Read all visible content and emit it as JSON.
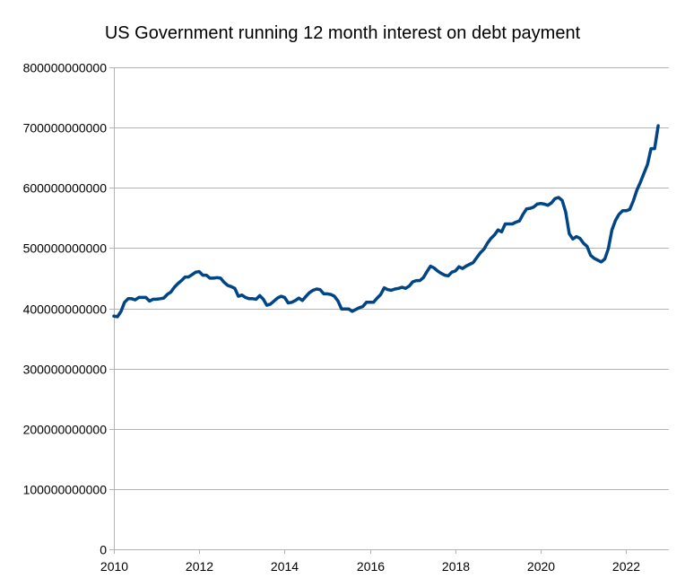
{
  "chart_data": {
    "type": "line",
    "title": "US Government running 12 month interest on debt payment",
    "xlabel": "",
    "ylabel": "",
    "xlim": [
      2010,
      2023.0
    ],
    "ylim": [
      0,
      800000000000
    ],
    "grid": true,
    "legend": "none",
    "x_ticks": [
      2010,
      2012,
      2014,
      2016,
      2018,
      2020,
      2022
    ],
    "x_tick_labels": [
      "2010",
      "2012",
      "2014",
      "2016",
      "2018",
      "2020",
      "2022"
    ],
    "y_ticks": [
      0,
      100000000000,
      200000000000,
      300000000000,
      400000000000,
      500000000000,
      600000000000,
      700000000000,
      800000000000
    ],
    "y_tick_labels": [
      "0",
      "100000000000",
      "200000000000",
      "300000000000",
      "400000000000",
      "500000000000",
      "600000000000",
      "700000000000",
      "800000000000"
    ],
    "series": [
      {
        "name": "Interest on debt (12-month running)",
        "color": "#004586",
        "x": [
          2010.0,
          2010.083,
          2010.167,
          2010.25,
          2010.333,
          2010.417,
          2010.5,
          2010.583,
          2010.667,
          2010.75,
          2010.833,
          2010.917,
          2011.0,
          2011.083,
          2011.167,
          2011.25,
          2011.333,
          2011.417,
          2011.5,
          2011.583,
          2011.667,
          2011.75,
          2011.833,
          2011.917,
          2012.0,
          2012.083,
          2012.167,
          2012.25,
          2012.333,
          2012.417,
          2012.5,
          2012.583,
          2012.667,
          2012.75,
          2012.833,
          2012.917,
          2013.0,
          2013.083,
          2013.167,
          2013.25,
          2013.333,
          2013.417,
          2013.5,
          2013.583,
          2013.667,
          2013.75,
          2013.833,
          2013.917,
          2014.0,
          2014.083,
          2014.167,
          2014.25,
          2014.333,
          2014.417,
          2014.5,
          2014.583,
          2014.667,
          2014.75,
          2014.833,
          2014.917,
          2015.0,
          2015.083,
          2015.167,
          2015.25,
          2015.333,
          2015.417,
          2015.5,
          2015.583,
          2015.667,
          2015.75,
          2015.833,
          2015.917,
          2016.0,
          2016.083,
          2016.167,
          2016.25,
          2016.333,
          2016.417,
          2016.5,
          2016.583,
          2016.667,
          2016.75,
          2016.833,
          2016.917,
          2017.0,
          2017.083,
          2017.167,
          2017.25,
          2017.333,
          2017.417,
          2017.5,
          2017.583,
          2017.667,
          2017.75,
          2017.833,
          2017.917,
          2018.0,
          2018.083,
          2018.167,
          2018.25,
          2018.333,
          2018.417,
          2018.5,
          2018.583,
          2018.667,
          2018.75,
          2018.833,
          2018.917,
          2019.0,
          2019.083,
          2019.167,
          2019.25,
          2019.333,
          2019.417,
          2019.5,
          2019.583,
          2019.667,
          2019.75,
          2019.833,
          2019.917,
          2020.0,
          2020.083,
          2020.167,
          2020.25,
          2020.333,
          2020.417,
          2020.5,
          2020.583,
          2020.667,
          2020.75,
          2020.833,
          2020.917,
          2021.0,
          2021.083,
          2021.167,
          2021.25,
          2021.333,
          2021.417,
          2021.5,
          2021.583,
          2021.667,
          2021.75,
          2021.833,
          2021.917,
          2022.0,
          2022.083,
          2022.167,
          2022.25,
          2022.333,
          2022.417,
          2022.5,
          2022.583,
          2022.667,
          2022.75
        ],
        "values": [
          387000000000,
          386000000000,
          395000000000,
          410000000000,
          416000000000,
          416000000000,
          414000000000,
          418000000000,
          418000000000,
          418000000000,
          412000000000,
          415000000000,
          415000000000,
          416000000000,
          417000000000,
          423000000000,
          427000000000,
          435000000000,
          441000000000,
          446000000000,
          452000000000,
          452000000000,
          456000000000,
          460000000000,
          461000000000,
          455000000000,
          455000000000,
          450000000000,
          450000000000,
          451000000000,
          450000000000,
          443000000000,
          438000000000,
          436000000000,
          433000000000,
          420000000000,
          422000000000,
          418000000000,
          416000000000,
          416000000000,
          415000000000,
          421000000000,
          415000000000,
          405000000000,
          407000000000,
          412000000000,
          417000000000,
          420000000000,
          418000000000,
          409000000000,
          410000000000,
          413000000000,
          417000000000,
          413000000000,
          420000000000,
          426000000000,
          430000000000,
          432000000000,
          431000000000,
          424000000000,
          424000000000,
          423000000000,
          420000000000,
          412000000000,
          399000000000,
          399000000000,
          399000000000,
          395000000000,
          398000000000,
          401000000000,
          403000000000,
          410000000000,
          410000000000,
          410000000000,
          417000000000,
          423000000000,
          434000000000,
          431000000000,
          430000000000,
          432000000000,
          433000000000,
          435000000000,
          433000000000,
          437000000000,
          444000000000,
          446000000000,
          446000000000,
          451000000000,
          461000000000,
          470000000000,
          467000000000,
          462000000000,
          458000000000,
          455000000000,
          454000000000,
          460000000000,
          462000000000,
          469000000000,
          466000000000,
          470000000000,
          473000000000,
          476000000000,
          484000000000,
          492000000000,
          498000000000,
          508000000000,
          516000000000,
          522000000000,
          530000000000,
          527000000000,
          540000000000,
          540000000000,
          540000000000,
          543000000000,
          545000000000,
          556000000000,
          565000000000,
          566000000000,
          568000000000,
          573000000000,
          574000000000,
          573000000000,
          571000000000,
          575000000000,
          582000000000,
          584000000000,
          579000000000,
          560000000000,
          524000000000,
          515000000000,
          519000000000,
          516000000000,
          508000000000,
          503000000000,
          488000000000,
          483000000000,
          480000000000,
          477000000000,
          482000000000,
          499000000000,
          530000000000,
          546000000000,
          556000000000,
          562000000000,
          562000000000,
          564000000000,
          578000000000,
          596000000000,
          609000000000,
          624000000000,
          639000000000,
          665000000000,
          665000000000,
          703000000000
        ]
      }
    ]
  }
}
